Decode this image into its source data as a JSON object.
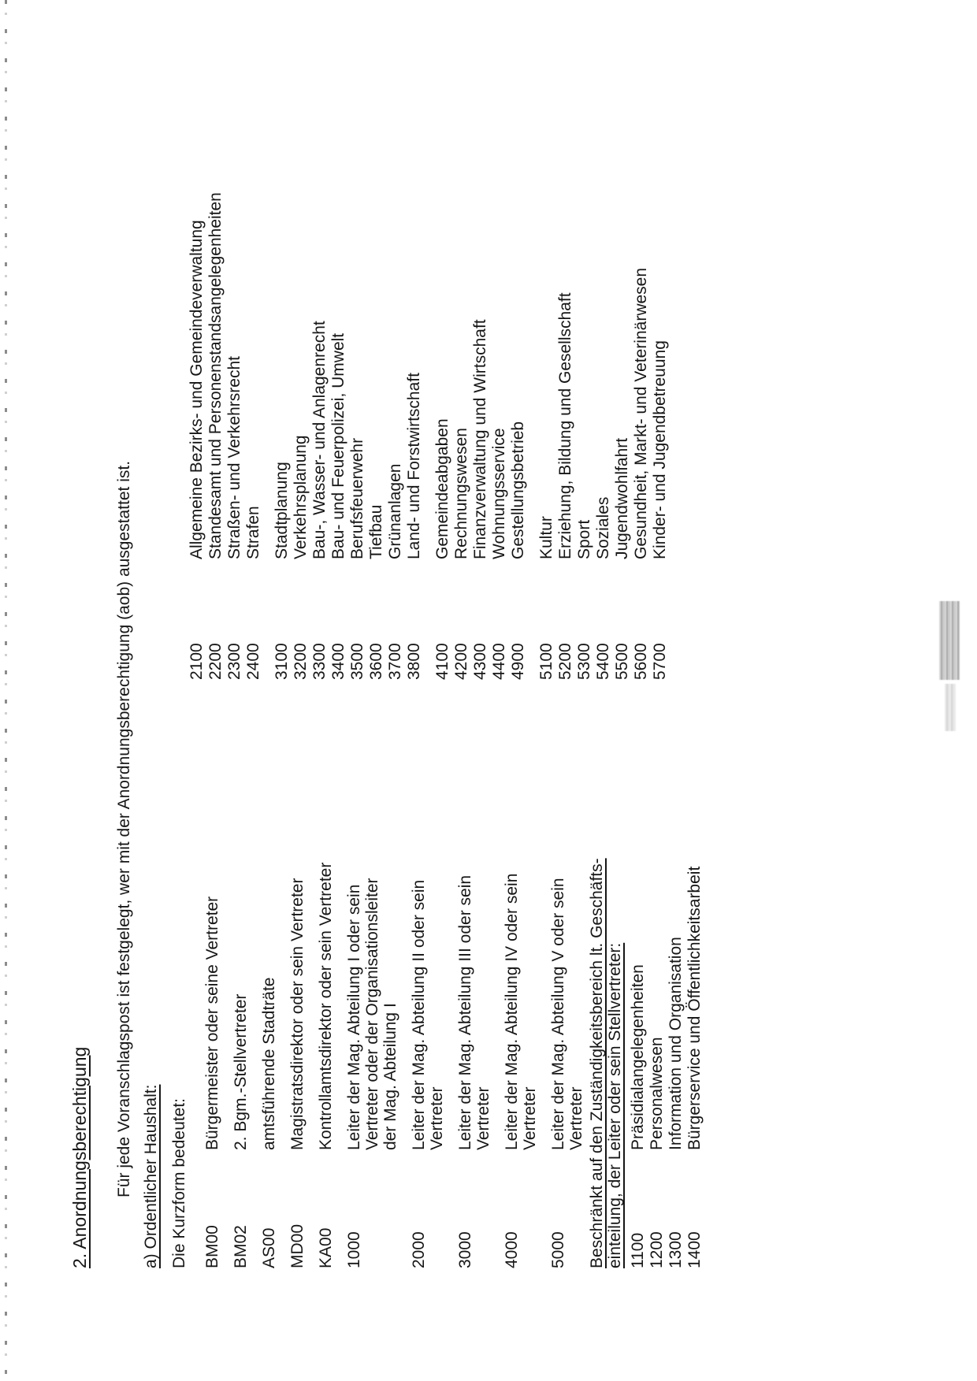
{
  "page": {
    "title": "2. Anordnungsberechtigung",
    "intro": "Für jede Voranschlagspost ist festgelegt, wer mit der Anordnungsberechtigung (aob) ausgestattet ist.",
    "section_a_heading": "a) Ordentlicher Haushalt:",
    "kurzform_label": "Die Kurzform bedeutet:"
  },
  "kurzform": {
    "rows": [
      {
        "code": "BM00",
        "description": "Bürgermeister oder seine Vertreter"
      },
      {
        "code": "BM02",
        "description": "2. Bgm.-Stellvertreter"
      },
      {
        "code": "AS00",
        "description": "amtsführende Stadträte"
      },
      {
        "code": "MD00",
        "description": "Magistratsdirektor oder sein Vertreter"
      },
      {
        "code": "KA00",
        "description": "Kontrollamtsdirektor oder sein Vertreter"
      },
      {
        "code": "1000",
        "description": "Leiter der Mag. Abteilung I oder sein\nVertreter oder der Organisationsleiter\nder Mag. Abteilung I"
      },
      {
        "code": "2000",
        "description": "Leiter der Mag. Abteilung II oder sein\nVertreter"
      },
      {
        "code": "3000",
        "description": "Leiter der Mag. Abteilung III oder sein\nVertreter"
      },
      {
        "code": "4000",
        "description": "Leiter der Mag. Abteilung IV oder sein\nVertreter"
      },
      {
        "code": "5000",
        "description": "Leiter der Mag. Abteilung V oder sein\nVertreter"
      }
    ]
  },
  "beschraenkt": {
    "heading": "Beschränkt auf den Zuständigkeitsbereich lt. Geschäfts-\neinteilung, der Leiter oder sein Stellvertreter:",
    "rows": [
      {
        "code": "1100",
        "description": "Präsidialangelegenheiten"
      },
      {
        "code": "1200",
        "description": "Personalwesen"
      },
      {
        "code": "1300",
        "description": "Information und Organisation"
      },
      {
        "code": "1400",
        "description": "Bürgerservice und Öffentlichkeitsarbeit"
      }
    ]
  },
  "departments": {
    "groups": [
      {
        "items": [
          {
            "code": "2100",
            "name": "Allgemeine Bezirks- und Gemeindeverwaltung"
          },
          {
            "code": "2200",
            "name": "Standesamt und Personenstandsangelegenheiten"
          },
          {
            "code": "2300",
            "name": "Straßen- und Verkehrsrecht"
          },
          {
            "code": "2400",
            "name": "Strafen"
          }
        ]
      },
      {
        "items": [
          {
            "code": "3100",
            "name": "Stadtplanung"
          },
          {
            "code": "3200",
            "name": "Verkehrsplanung"
          },
          {
            "code": "3300",
            "name": "Bau-, Wasser- und Anlagenrecht"
          },
          {
            "code": "3400",
            "name": "Bau- und Feuerpolizei, Umwelt"
          },
          {
            "code": "3500",
            "name": "Berufsfeuerwehr"
          },
          {
            "code": "3600",
            "name": "Tiefbau"
          },
          {
            "code": "3700",
            "name": "Grünanlagen"
          },
          {
            "code": "3800",
            "name": "Land- und Forstwirtschaft"
          }
        ]
      },
      {
        "items": [
          {
            "code": "4100",
            "name": "Gemeindeabgaben"
          },
          {
            "code": "4200",
            "name": "Rechnungswesen"
          },
          {
            "code": "4300",
            "name": "Finanzverwaltung und Wirtschaft"
          },
          {
            "code": "4400",
            "name": "Wohnungsservice"
          },
          {
            "code": "4900",
            "name": "Gestellungsbetrieb"
          }
        ]
      },
      {
        "items": [
          {
            "code": "5100",
            "name": "Kultur"
          },
          {
            "code": "5200",
            "name": "Erziehung, Bildung und Gesellschaft"
          },
          {
            "code": "5300",
            "name": "Sport"
          },
          {
            "code": "5400",
            "name": "Soziales"
          },
          {
            "code": "5500",
            "name": "Jugendwohlfahrt"
          },
          {
            "code": "5600",
            "name": "Gesundheit, Markt- und Veterinärwesen"
          },
          {
            "code": "5700",
            "name": "Kinder- und Jugendbetreuung"
          }
        ]
      }
    ]
  }
}
